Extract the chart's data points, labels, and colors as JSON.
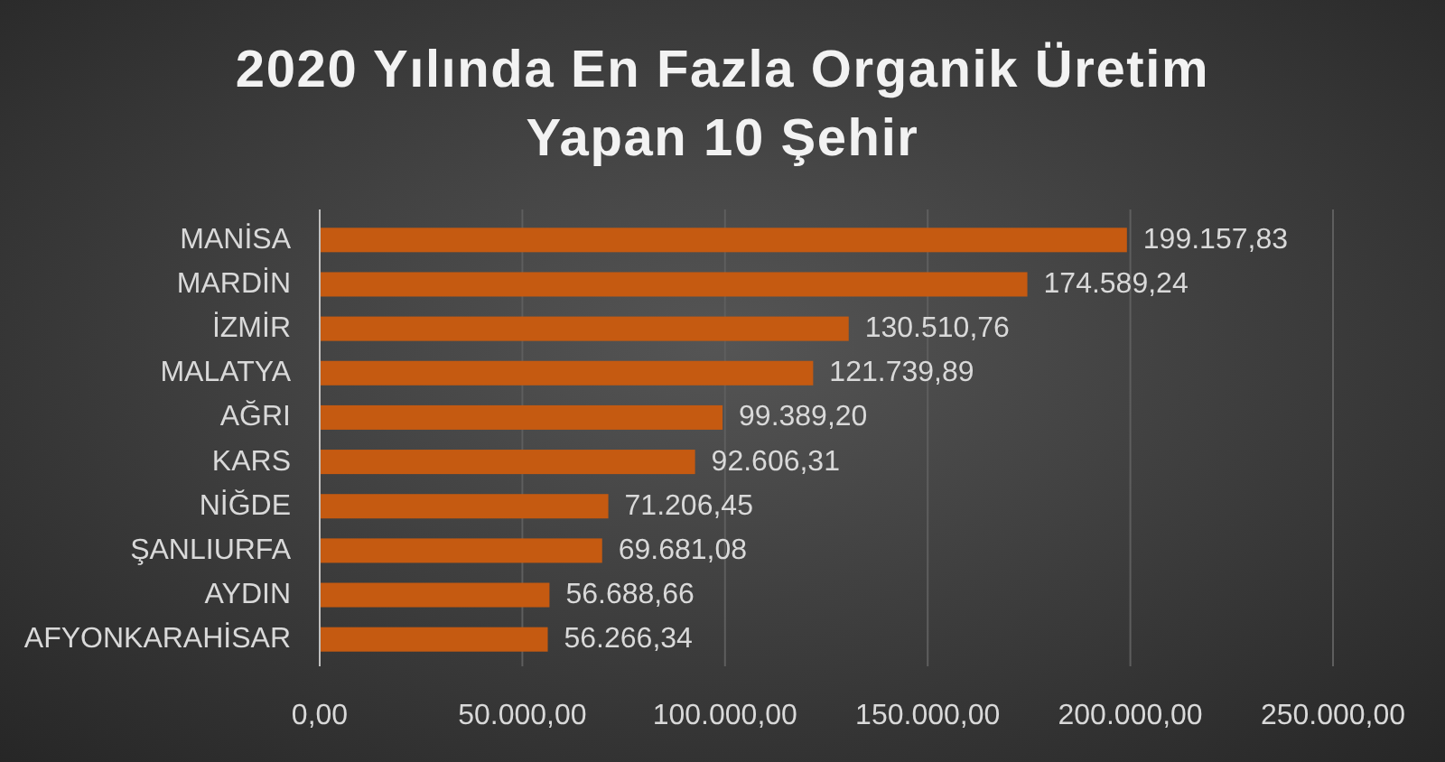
{
  "chart_data": {
    "type": "bar",
    "orientation": "horizontal",
    "title": "2020 Yılında En Fazla Organik Üretim Yapan 10 Şehir",
    "categories": [
      "MANİSA",
      "MARDİN",
      "İZMİR",
      "MALATYA",
      "AĞRI",
      "KARS",
      "NİĞDE",
      "ŞANLIURFA",
      "AYDIN",
      "AFYONKARAHİSAR"
    ],
    "values": [
      199157.83,
      174589.24,
      130510.76,
      121739.89,
      99389.2,
      92606.31,
      71206.45,
      69681.08,
      56688.66,
      56266.34
    ],
    "value_labels": [
      "199.157,83",
      "174.589,24",
      "130.510,76",
      "121.739,89",
      "99.389,20",
      "92.606,31",
      "71.206,45",
      "69.681,08",
      "56.688,66",
      "56.266,34"
    ],
    "color": "#c55a11",
    "xlim": [
      0,
      250000
    ],
    "xticks": [
      {
        "value": 0,
        "label": "0,00"
      },
      {
        "value": 50000,
        "label": "50.000,00"
      },
      {
        "value": 100000,
        "label": "100.000,00"
      },
      {
        "value": 150000,
        "label": "150.000,00"
      },
      {
        "value": 200000,
        "label": "200.000,00"
      },
      {
        "value": 250000,
        "label": "250.000,00"
      }
    ],
    "grid": "x"
  }
}
